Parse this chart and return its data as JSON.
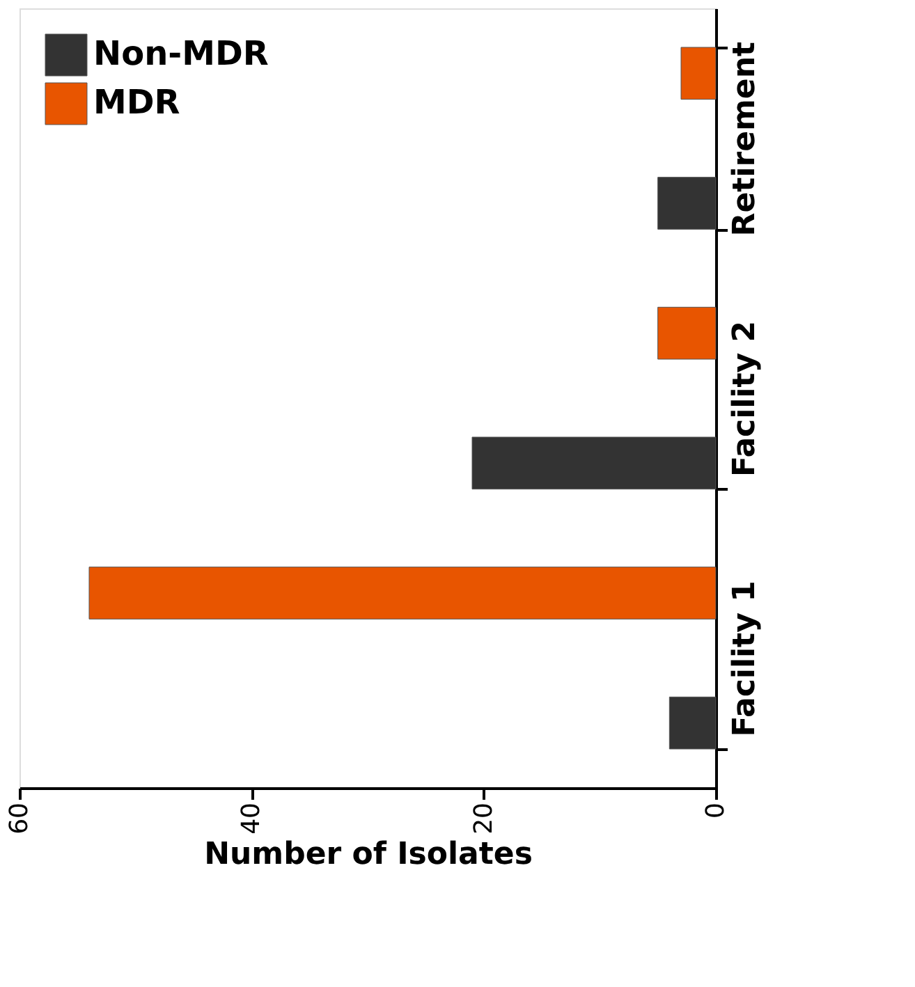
{
  "chart_data": {
    "type": "bar",
    "orientation": "horizontal",
    "xlabel": "Number of Isolates",
    "categories": [
      "Retirement",
      "Facility 2",
      "Facility 1"
    ],
    "series": [
      {
        "name": "Non-MDR",
        "color": "#333333",
        "values": [
          5,
          21,
          4
        ]
      },
      {
        "name": "MDR",
        "color": "#e85500",
        "values": [
          3,
          5,
          54
        ]
      }
    ],
    "xlim": [
      60,
      0
    ],
    "xticks": [
      60,
      40,
      20,
      0
    ],
    "grid": false,
    "legend": "top left"
  }
}
